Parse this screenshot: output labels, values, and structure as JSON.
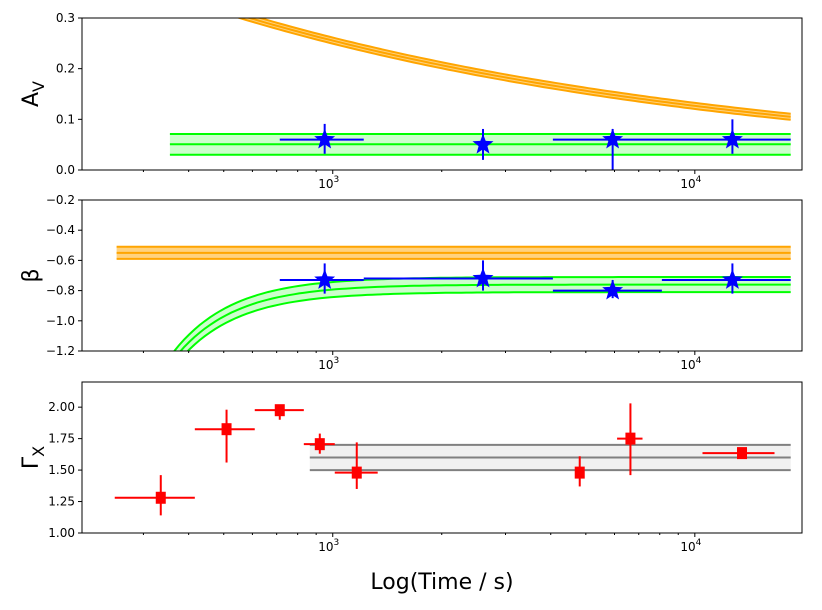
{
  "chart_data": [
    {
      "type": "scatter",
      "id": "av",
      "ylabel": "A",
      "ylabel_sub": "V",
      "xscale": "log",
      "xlim": [
        203,
        19770
      ],
      "ylim": [
        0,
        0.3
      ],
      "yticks": [
        0,
        0.1,
        0.2,
        0.3
      ],
      "ytick_labels": [
        "0.0",
        "0.1",
        "0.2",
        "0.3"
      ],
      "xtick_labels": [
        {
          "base": "10",
          "exp": "3",
          "value": 1000
        },
        {
          "base": "10",
          "exp": "4",
          "value": 10000
        }
      ],
      "points": [
        {
          "x": 950,
          "y": 0.06,
          "ylo": 0.032,
          "yhi": 0.091,
          "xlo": 714,
          "xhi": 1218
        },
        {
          "x": 2600,
          "y": 0.05,
          "ylo": 0.02,
          "yhi": 0.081
        },
        {
          "x": 5930,
          "y": 0.06,
          "ylo": 0.0,
          "yhi": 0.081,
          "xlo": 4055,
          "xhi": 18400
        },
        {
          "x": 12700,
          "y": 0.06,
          "ylo": 0.032,
          "yhi": 0.1
        }
      ],
      "marker": "star",
      "marker_color": "#0000ff",
      "bands": [
        {
          "name": "orange-model-band",
          "kind": "powerlaw",
          "color": "#ffa500",
          "fill": "#ffd27f",
          "x_range": [
            253,
            18400
          ],
          "amp": 0.3,
          "t0": 590,
          "index": -0.305,
          "halfwidth": 0.006
        },
        {
          "name": "green-fit-band",
          "kind": "constant",
          "color": "#00ff00",
          "fill": "#ccffcc",
          "x_range": [
            355,
            18400
          ],
          "lo": 0.03,
          "mid": 0.051,
          "hi": 0.071
        }
      ]
    },
    {
      "type": "scatter",
      "id": "beta",
      "ylabel": "β",
      "xscale": "log",
      "xlim": [
        203,
        19770
      ],
      "ylim": [
        -1.2,
        -0.2
      ],
      "yticks": [
        -1.2,
        -1.0,
        -0.8,
        -0.6,
        -0.4,
        -0.2
      ],
      "ytick_labels": [
        "−1.2",
        "−1.0",
        "−0.8",
        "−0.6",
        "−0.4",
        "−0.2"
      ],
      "xtick_labels": [
        {
          "base": "10",
          "exp": "3",
          "value": 1000
        },
        {
          "base": "10",
          "exp": "4",
          "value": 10000
        }
      ],
      "points": [
        {
          "x": 950,
          "y": -0.73,
          "ylo": -0.82,
          "yhi": -0.62,
          "xlo": 714,
          "xhi": 1218
        },
        {
          "x": 2600,
          "y": -0.72,
          "ylo": -0.8,
          "yhi": -0.6,
          "xlo": 1218,
          "xhi": 4055
        },
        {
          "x": 5930,
          "y": -0.8,
          "ylo": -0.85,
          "yhi": -0.73,
          "xlo": 4055,
          "xhi": 8110
        },
        {
          "x": 12700,
          "y": -0.73,
          "ylo": -0.82,
          "yhi": -0.62,
          "xlo": 8110,
          "xhi": 18400
        }
      ],
      "marker": "star",
      "marker_color": "#0000ff",
      "bands": [
        {
          "name": "orange-model-band",
          "kind": "constant",
          "color": "#ffa500",
          "fill": "#ffd27f",
          "x_range": [
            253,
            18400
          ],
          "lo": -0.59,
          "mid": -0.55,
          "hi": -0.51
        },
        {
          "name": "green-fit-band",
          "kind": "rising",
          "color": "#00ff00",
          "fill": "#ccffcc",
          "x_range": [
            340,
            18400
          ],
          "lo": -0.81,
          "mid": -0.76,
          "hi": -0.71,
          "drop": 0.44,
          "t0": 380,
          "index": 2.67
        }
      ]
    },
    {
      "type": "scatter",
      "id": "gamma",
      "ylabel": "Γ",
      "ylabel_sub": "X",
      "xlabel": "Log(Time / s)",
      "xscale": "log",
      "xlim": [
        203,
        19770
      ],
      "ylim": [
        1.0,
        2.2
      ],
      "yticks": [
        1.0,
        1.25,
        1.5,
        1.75,
        2.0
      ],
      "ytick_labels": [
        "1.00",
        "1.25",
        "1.50",
        "1.75",
        "2.00"
      ],
      "xtick_labels": [
        {
          "base": "10",
          "exp": "3",
          "value": 1000
        },
        {
          "base": "10",
          "exp": "4",
          "value": 10000
        }
      ],
      "points": [
        {
          "x": 335,
          "y": 1.28,
          "ylo": 1.14,
          "yhi": 1.46,
          "xlo": 250,
          "xhi": 416
        },
        {
          "x": 509,
          "y": 1.825,
          "ylo": 1.56,
          "yhi": 1.98,
          "xlo": 416,
          "xhi": 609
        },
        {
          "x": 714,
          "y": 1.976,
          "ylo": 1.9,
          "yhi": 2.02,
          "xlo": 609,
          "xhi": 832
        },
        {
          "x": 921,
          "y": 1.706,
          "ylo": 1.63,
          "yhi": 1.79,
          "xlo": 832,
          "xhi": 1013
        },
        {
          "x": 1165,
          "y": 1.48,
          "ylo": 1.35,
          "yhi": 1.72,
          "xlo": 1013,
          "xhi": 1331
        },
        {
          "x": 4810,
          "y": 1.48,
          "ylo": 1.37,
          "yhi": 1.61
        },
        {
          "x": 6640,
          "y": 1.75,
          "ylo": 1.46,
          "yhi": 2.03,
          "xlo": 6100,
          "xhi": 7170
        },
        {
          "x": 13500,
          "y": 1.635,
          "ylo": 1.62,
          "yhi": 1.66,
          "xlo": 10500,
          "xhi": 16600
        }
      ],
      "marker": "square",
      "marker_color": "#ff0000",
      "bands": [
        {
          "name": "gray-fit-band",
          "kind": "constant",
          "color": "#808080",
          "fill": "#f0f0f0",
          "x_range": [
            864,
            18400
          ],
          "lo": 1.5,
          "mid": 1.6,
          "hi": 1.7
        }
      ]
    }
  ]
}
